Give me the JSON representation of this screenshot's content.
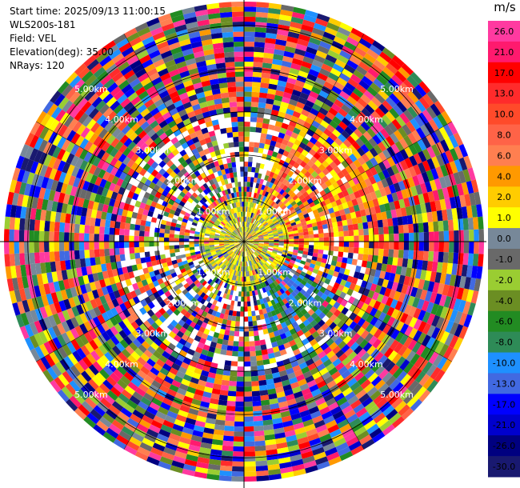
{
  "header": {
    "start_time": "Start time: 2025/09/13 11:00:15",
    "instrument": "WLS200s-181",
    "field": "Field: VEL",
    "elevation": "Elevation(deg): 35.00",
    "nrays": "NRays: 120"
  },
  "chart_data": {
    "type": "heatmap",
    "projection": "polar (PPI scan)",
    "field": "VEL",
    "units": "m/s",
    "elevation_deg": 35.0,
    "n_rays": 120,
    "range_rings_km": [
      1.0,
      2.0,
      3.0,
      4.0,
      5.0
    ],
    "range_ring_labels": [
      "1.00km",
      "2.00km",
      "3.00km",
      "4.00km",
      "5.00km"
    ],
    "max_range_km": 5.55,
    "colorbar": {
      "title": "m/s",
      "tick_labels": [
        "26.0",
        "21.0",
        "17.0",
        "13.0",
        "10.0",
        "8.0",
        "6.0",
        "4.0",
        "2.0",
        "1.0",
        "0.0",
        "-1.0",
        "-2.0",
        "-4.0",
        "-6.0",
        "-8.0",
        "-10.0",
        "-13.0",
        "-17.0",
        "-21.0",
        "-26.0",
        "-30.0"
      ],
      "colors": [
        "#ff3aa0",
        "#ff1a6e",
        "#ff0000",
        "#ff2b2b",
        "#ff4a2a",
        "#ff6347",
        "#ff7f50",
        "#ff9900",
        "#ffcc00",
        "#ffff00",
        "#778899",
        "#696969",
        "#9acd32",
        "#6b8e23",
        "#228b22",
        "#2e8b57",
        "#1e90ff",
        "#4169e1",
        "#0000ff",
        "#0000cd",
        "#000080",
        "#191970"
      ]
    },
    "features": {
      "inner_region_km": 1.0,
      "inner_mixed_colors": [
        "#9acd32",
        "#778899",
        "#ffcc00",
        "#ffff00"
      ],
      "positive_sector_deg": [
        20,
        95
      ],
      "positive_colors": [
        "#ff4a2a",
        "#ff2b2b",
        "#ff6347",
        "#ff7f50",
        "#ff9900",
        "#ffcc00",
        "#ffff00"
      ],
      "negative_sector_deg": [
        120,
        165
      ],
      "negative_colors": [
        "#1e90ff",
        "#4169e1",
        "#228b22",
        "#2e8b57"
      ]
    }
  }
}
